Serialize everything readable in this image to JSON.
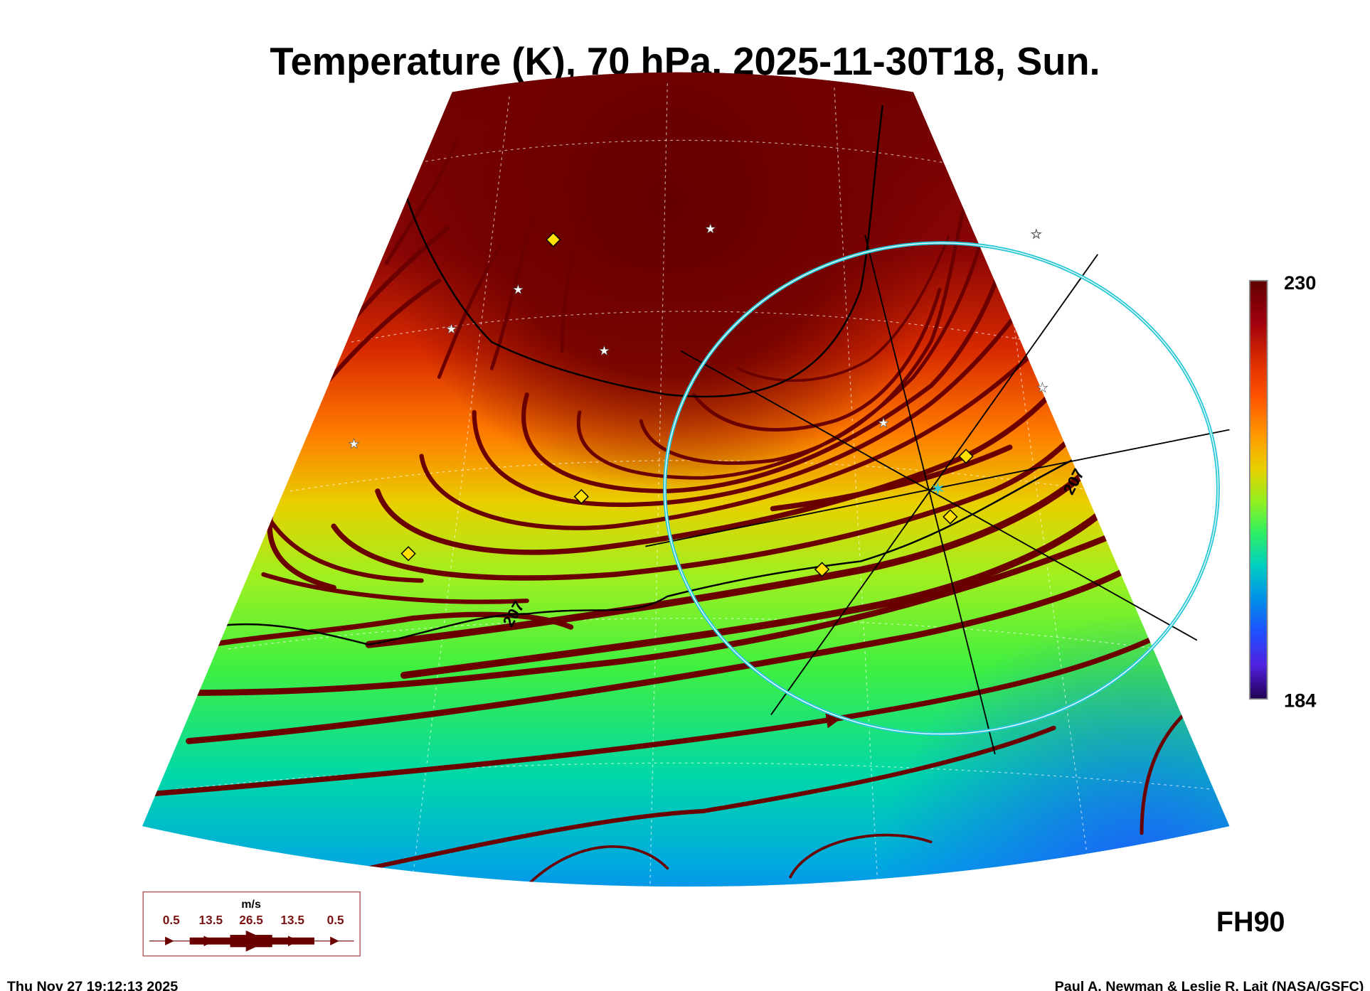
{
  "title": "Temperature (K), 70 hPa, 2025-11-30T18, Sun.",
  "colorbar": {
    "max_label": "230",
    "min_label": "184",
    "colors": [
      "#600000",
      "#a00010",
      "#e03000",
      "#ff5500",
      "#ff9900",
      "#e8d000",
      "#90f020",
      "#30f060",
      "#00d0c0",
      "#0090e8",
      "#2050ff",
      "#5020e0",
      "#200050"
    ]
  },
  "contour_labels": [
    "207",
    "207"
  ],
  "legend": {
    "unit": "m/s",
    "speeds": [
      "0.5",
      "13.5",
      "26.5",
      "13.5",
      "0.5"
    ],
    "color": "#6a0000"
  },
  "forecast_hour": "FH90",
  "footer": {
    "timestamp": "Thu Nov 27 19:12:13 2025",
    "credit": "Paul A. Newman & Leslie R. Lait (NASA/GSFC)"
  },
  "colors": {
    "streamline": "#6a0000",
    "target_circle": "#2ac8d8",
    "marker": "#ffe000"
  }
}
